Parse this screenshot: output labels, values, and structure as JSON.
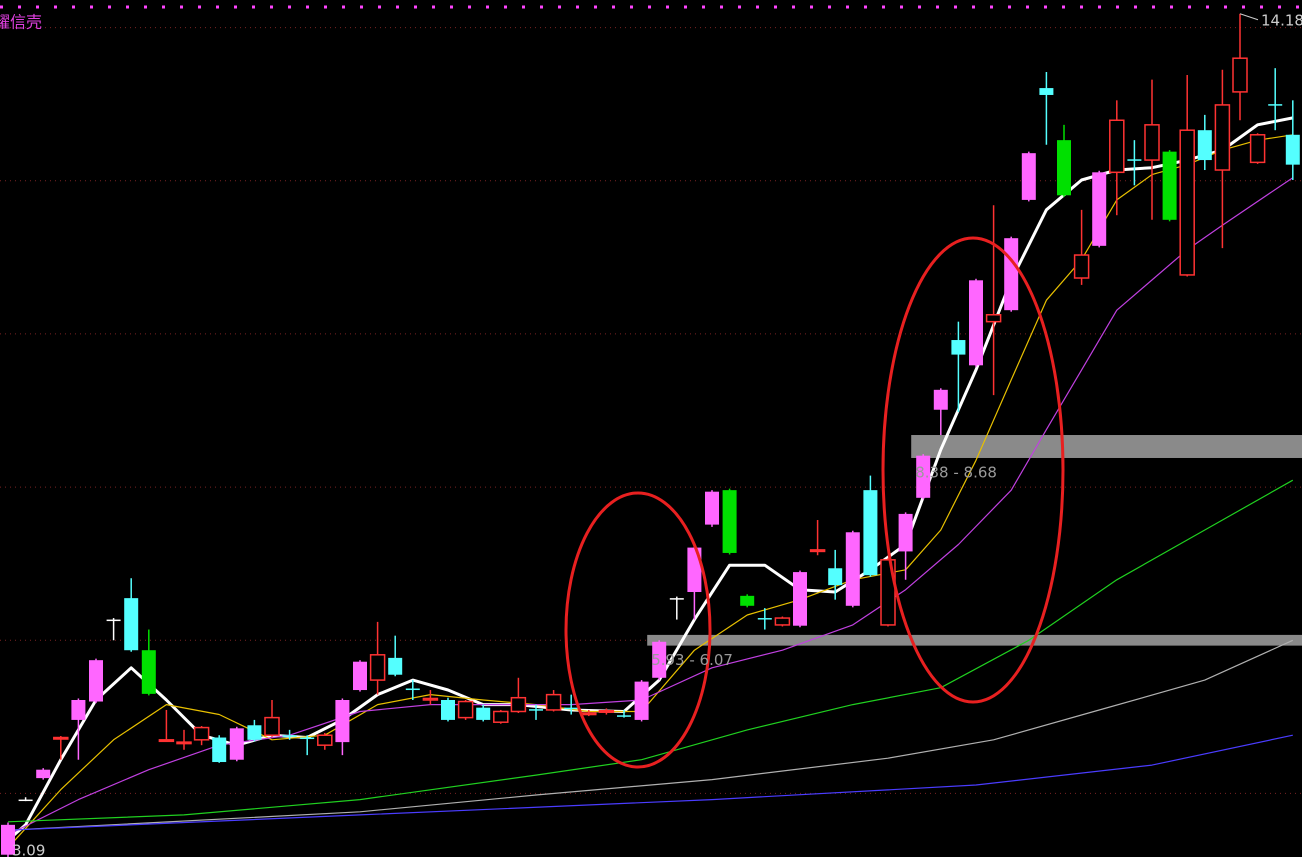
{
  "chart_data": {
    "type": "candlestick",
    "title": "耀信壳",
    "ylim": [
      3.17,
      14.36
    ],
    "grid_levels": [
      4,
      6,
      8,
      10,
      12,
      14
    ],
    "hollow_color": "#ff3232",
    "candles": {
      "open": [
        3.2,
        3.92,
        4.2,
        4.73,
        4.96,
        5.2,
        6.27,
        6.55,
        5.87,
        4.7,
        4.67,
        4.7,
        4.73,
        4.44,
        4.89,
        4.76,
        4.76,
        4.73,
        4.63,
        4.67,
        5.35,
        5.48,
        5.77,
        5.37,
        5.22,
        5.22,
        4.99,
        5.12,
        4.93,
        5.07,
        5.1,
        5.09,
        5.12,
        5.03,
        5.07,
        5.02,
        4.96,
        5.51,
        6.55,
        6.63,
        7.51,
        7.96,
        6.58,
        6.29,
        6.2,
        6.19,
        7.16,
        6.94,
        6.45,
        7.96,
        6.2,
        7.16,
        7.86,
        9.01,
        9.92,
        9.59,
        10.16,
        10.31,
        11.75,
        13.21,
        12.53,
        10.73,
        11.15,
        12.11,
        12.28,
        12.27,
        12.38,
        10.77,
        12.66,
        12.14,
        13.16,
        12.24,
        13.0,
        12.6
      ],
      "close": [
        3.59,
        3.92,
        4.31,
        4.73,
        5.22,
        5.74,
        6.27,
        5.87,
        5.3,
        4.7,
        4.67,
        4.86,
        4.41,
        4.85,
        4.7,
        4.99,
        4.74,
        4.71,
        4.76,
        5.22,
        5.72,
        5.81,
        5.55,
        5.35,
        5.24,
        4.96,
        5.2,
        4.96,
        5.07,
        5.25,
        5.09,
        5.29,
        5.11,
        5.05,
        5.08,
        5.01,
        5.46,
        5.98,
        6.55,
        7.21,
        7.94,
        7.14,
        6.45,
        6.28,
        6.29,
        6.89,
        7.18,
        6.72,
        7.41,
        6.85,
        7.05,
        7.65,
        8.41,
        9.27,
        9.73,
        10.7,
        10.25,
        11.25,
        12.36,
        13.12,
        11.81,
        11.03,
        12.11,
        12.79,
        12.27,
        12.73,
        11.49,
        12.66,
        12.27,
        12.99,
        13.6,
        12.6,
        12.99,
        12.21
      ],
      "high": [
        3.62,
        3.95,
        4.33,
        4.75,
        5.24,
        5.76,
        6.29,
        6.81,
        6.14,
        5.09,
        4.83,
        4.88,
        4.76,
        4.87,
        4.96,
        5.22,
        4.83,
        4.76,
        4.79,
        5.24,
        5.74,
        6.24,
        6.06,
        5.48,
        5.35,
        5.25,
        5.22,
        5.16,
        5.09,
        5.51,
        5.16,
        5.35,
        5.29,
        5.09,
        5.11,
        5.09,
        5.48,
        6.0,
        6.57,
        7.23,
        7.96,
        7.98,
        6.6,
        6.42,
        6.31,
        6.91,
        7.57,
        7.18,
        7.43,
        8.15,
        7.07,
        7.67,
        8.43,
        9.29,
        10.16,
        10.72,
        11.68,
        11.27,
        12.38,
        13.42,
        12.73,
        11.62,
        12.13,
        13.05,
        12.53,
        13.32,
        12.4,
        13.38,
        12.86,
        13.45,
        14.18,
        12.62,
        13.47,
        13.05
      ],
      "low": [
        3.09,
        3.9,
        4.18,
        4.44,
        4.44,
        5.18,
        6.0,
        5.85,
        5.28,
        4.68,
        4.57,
        4.63,
        4.4,
        4.42,
        4.68,
        4.74,
        4.7,
        4.5,
        4.57,
        4.5,
        5.33,
        5.29,
        5.53,
        5.22,
        5.16,
        4.94,
        4.96,
        4.94,
        4.91,
        5.05,
        4.96,
        5.07,
        5.03,
        5.01,
        5.03,
        4.99,
        4.94,
        5.48,
        6.27,
        6.27,
        7.48,
        7.12,
        6.43,
        6.14,
        6.18,
        6.17,
        7.11,
        6.53,
        6.43,
        6.83,
        6.18,
        6.79,
        7.84,
        8.68,
        8.98,
        9.57,
        9.2,
        10.29,
        11.73,
        12.47,
        11.79,
        10.64,
        11.13,
        11.55,
        11.94,
        11.49,
        11.47,
        10.75,
        12.14,
        11.12,
        12.79,
        12.22,
        12.66,
        12.01
      ],
      "colors": [
        "#ff66ff",
        "#ffffff",
        "#ff66ff",
        "#ff3232",
        "#ff66ff",
        "#ff66ff",
        "#ffffff",
        "#54ffff",
        "#00e000",
        "#ff3232",
        "#ff3232",
        "#ff3232",
        "#54ffff",
        "#ff66ff",
        "#54ffff",
        "#ff3232",
        "#54ffff",
        "#54ffff",
        "#ff3232",
        "#ff66ff",
        "#ff66ff",
        "#ff3232",
        "#54ffff",
        "#54ffff",
        "#ff3232",
        "#54ffff",
        "#ff3232",
        "#54ffff",
        "#ff3232",
        "#ff3232",
        "#54ffff",
        "#ff3232",
        "#54ffff",
        "#ff3232",
        "#ff3232",
        "#54ffff",
        "#ff66ff",
        "#ff66ff",
        "#ffffff",
        "#ff66ff",
        "#ff66ff",
        "#00e000",
        "#00e000",
        "#54ffff",
        "#ff3232",
        "#ff66ff",
        "#ff3232",
        "#54ffff",
        "#ff66ff",
        "#54ffff",
        "#ff3232",
        "#ff66ff",
        "#ff66ff",
        "#ff66ff",
        "#54ffff",
        "#ff66ff",
        "#ff3232",
        "#ff66ff",
        "#ff66ff",
        "#54ffff",
        "#00e000",
        "#ff3232",
        "#ff66ff",
        "#ff3232",
        "#54ffff",
        "#ff3232",
        "#00e000",
        "#ff3232",
        "#54ffff",
        "#ff3232",
        "#ff3232",
        "#ff3232",
        "#54ffff",
        "#54ffff"
      ]
    },
    "series": [
      {
        "color": "#ffffff",
        "x": [
          0,
          1,
          3,
          5,
          7,
          9,
          11,
          13,
          15,
          17,
          19,
          21,
          23,
          25,
          27,
          29,
          32,
          35,
          37,
          39,
          41,
          43,
          45,
          47,
          49,
          51,
          53,
          55,
          57,
          59,
          61,
          63,
          65,
          67,
          69,
          71,
          73
        ],
        "values": [
          3.39,
          3.59,
          4.44,
          5.22,
          5.64,
          5.22,
          4.76,
          4.63,
          4.76,
          4.73,
          4.96,
          5.29,
          5.48,
          5.35,
          5.16,
          5.16,
          5.09,
          5.07,
          5.48,
          6.27,
          6.98,
          6.98,
          6.66,
          6.63,
          6.92,
          7.25,
          8.49,
          9.53,
          10.7,
          11.62,
          12.01,
          12.14,
          12.17,
          12.27,
          12.4,
          12.73,
          12.82
        ]
      },
      {
        "color": "#e8c000",
        "x": [
          0,
          3,
          6,
          9,
          12,
          15,
          18,
          21,
          24,
          27,
          30,
          33,
          36,
          39,
          42,
          45,
          48,
          51,
          53,
          55,
          57,
          59,
          61,
          63,
          65,
          67,
          69,
          71,
          73
        ],
        "values": [
          3.29,
          4.05,
          4.7,
          5.16,
          5.03,
          4.7,
          4.76,
          5.16,
          5.29,
          5.22,
          5.16,
          5.07,
          5.07,
          5.87,
          6.33,
          6.53,
          6.79,
          6.92,
          7.44,
          8.35,
          9.4,
          10.44,
          10.97,
          11.75,
          12.08,
          12.21,
          12.4,
          12.53,
          12.6
        ]
      },
      {
        "color": "#c040e0",
        "x": [
          0,
          4,
          8,
          12,
          16,
          20,
          24,
          28,
          32,
          36,
          40,
          44,
          48,
          51,
          54,
          57,
          59,
          61,
          63,
          67,
          69,
          73
        ],
        "values": [
          3.46,
          3.92,
          4.31,
          4.63,
          4.76,
          5.07,
          5.16,
          5.16,
          5.16,
          5.22,
          5.64,
          5.87,
          6.2,
          6.66,
          7.25,
          7.96,
          8.75,
          9.53,
          10.31,
          11.1,
          11.42,
          12.04
        ]
      },
      {
        "color": "#20d020",
        "x": [
          0,
          10,
          20,
          30,
          36,
          42,
          48,
          53,
          58,
          63,
          68,
          73
        ],
        "values": [
          3.63,
          3.72,
          3.92,
          4.24,
          4.44,
          4.83,
          5.16,
          5.38,
          6.0,
          6.79,
          7.44,
          8.09
        ]
      },
      {
        "color": "#b0b0b0",
        "x": [
          0,
          20,
          30,
          40,
          50,
          56,
          62,
          68,
          73
        ],
        "values": [
          3.52,
          3.76,
          3.98,
          4.18,
          4.46,
          4.7,
          5.09,
          5.48,
          6.0
        ]
      },
      {
        "color": "#4a3cff",
        "x": [
          0,
          20,
          40,
          55,
          65,
          73
        ],
        "values": [
          3.52,
          3.72,
          3.92,
          4.11,
          4.37,
          4.76
        ]
      }
    ],
    "zones": [
      {
        "low": 5.93,
        "high": 6.07,
        "label": "5.93 - 6.07",
        "from": 37
      },
      {
        "low": 8.38,
        "high": 8.68,
        "label": "8.38 - 8.68",
        "from": 52
      }
    ],
    "max_label": "14.18",
    "min_label": "3.09"
  }
}
